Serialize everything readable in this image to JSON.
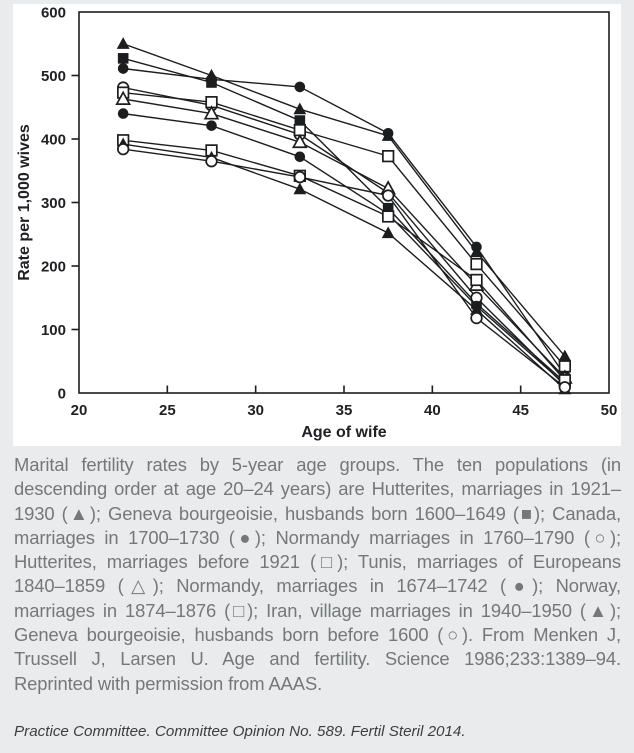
{
  "colors": {
    "page_background": "#e9ebec",
    "chart_background": "#ffffff",
    "ink": "#1c1d1f",
    "caption_text": "#75787b",
    "footer_text": "#3c3e40"
  },
  "chart_data": {
    "type": "line",
    "title": "",
    "xlabel": "Age of wife",
    "ylabel": "Rate per 1,000 wives",
    "x": [
      22.5,
      27.5,
      32.5,
      37.5,
      42.5,
      47.5
    ],
    "xlim": [
      20,
      50
    ],
    "ylim": [
      0,
      600
    ],
    "x_ticks": [
      20,
      25,
      30,
      35,
      40,
      45,
      50
    ],
    "y_ticks": [
      0,
      100,
      200,
      300,
      400,
      500,
      600
    ],
    "grid": false,
    "legend_position": "none (markers identified in caption)",
    "marker_color": "#1c1d1f",
    "line_color": "#1c1d1f",
    "series": [
      {
        "id": "hutterites-1921-1930",
        "name": "Hutterites, marriages in 1921–1930",
        "marker": "filled-triangle",
        "values": [
          550,
          500,
          447,
          405,
          222,
          58
        ]
      },
      {
        "id": "geneva-1600-1649",
        "name": "Geneva bourgeoisie, husbands born 1600–1649",
        "marker": "filled-square",
        "values": [
          527,
          489,
          429,
          291,
          141,
          17
        ]
      },
      {
        "id": "canada-1700-1730",
        "name": "Canada, marriages in 1700–1730",
        "marker": "filled-circle",
        "values": [
          511,
          494,
          482,
          409,
          230,
          28
        ]
      },
      {
        "id": "normandy-1760-1790",
        "name": "Normandy marriages in 1760–1790",
        "marker": "open-circle",
        "values": [
          481,
          453,
          407,
          315,
          150,
          12
        ]
      },
      {
        "id": "hutterites-before-1921",
        "name": "Hutterites, marriages before 1921",
        "marker": "open-square",
        "values": [
          473,
          458,
          414,
          373,
          203,
          42
        ]
      },
      {
        "id": "tunis-europeans-1840-1859",
        "name": "Tunis, marriages of Europeans 1840–1859",
        "marker": "open-triangle",
        "values": [
          463,
          440,
          395,
          322,
          170,
          24
        ]
      },
      {
        "id": "normandy-1674-1742",
        "name": "Normandy, marriages in 1674–1742",
        "marker": "filled-circle",
        "values": [
          440,
          421,
          372,
          282,
          137,
          14
        ]
      },
      {
        "id": "norway-1874-1876",
        "name": "Norway, marriages in 1874–1876",
        "marker": "open-square",
        "values": [
          398,
          382,
          342,
          278,
          178,
          20
        ]
      },
      {
        "id": "iran-village-1940-1950",
        "name": "Iran, village marriages in 1940–1950",
        "marker": "filled-triangle",
        "values": [
          392,
          371,
          321,
          252,
          131,
          6
        ]
      },
      {
        "id": "geneva-before-1600",
        "name": "Geneva bourgeoisie, husbands born before 1600",
        "marker": "open-circle",
        "values": [
          384,
          365,
          340,
          311,
          118,
          9
        ]
      }
    ]
  },
  "caption": {
    "text": "Marital fertility rates by 5-year age groups. The ten populations (in descending order at age 20–24 years) are Hutterites, marriages in 1921–1930 (▲); Geneva bourgeoisie, husbands born 1600–1649 (■); Canada, marriages in 1700–1730 (●); Normandy marriages in 1760–1790 (○); Hutterites, marriages before 1921 (□); Tunis, marriages of Europeans 1840–1859 (△); Normandy, marriages in 1674–1742 (●); Norway, marriages in 1874–1876 (□); Iran, village marriages in 1940–1950 (▲); Geneva bourgeoisie, husbands born before 1600 (○). From Menken J, Trussell J, Larsen U. Age and fertility. Science 1986;233:1389–94. Reprinted with permission from AAAS."
  },
  "footer": {
    "text": "Practice Committee. Committee Opinion No. 589. Fertil Steril 2014."
  }
}
